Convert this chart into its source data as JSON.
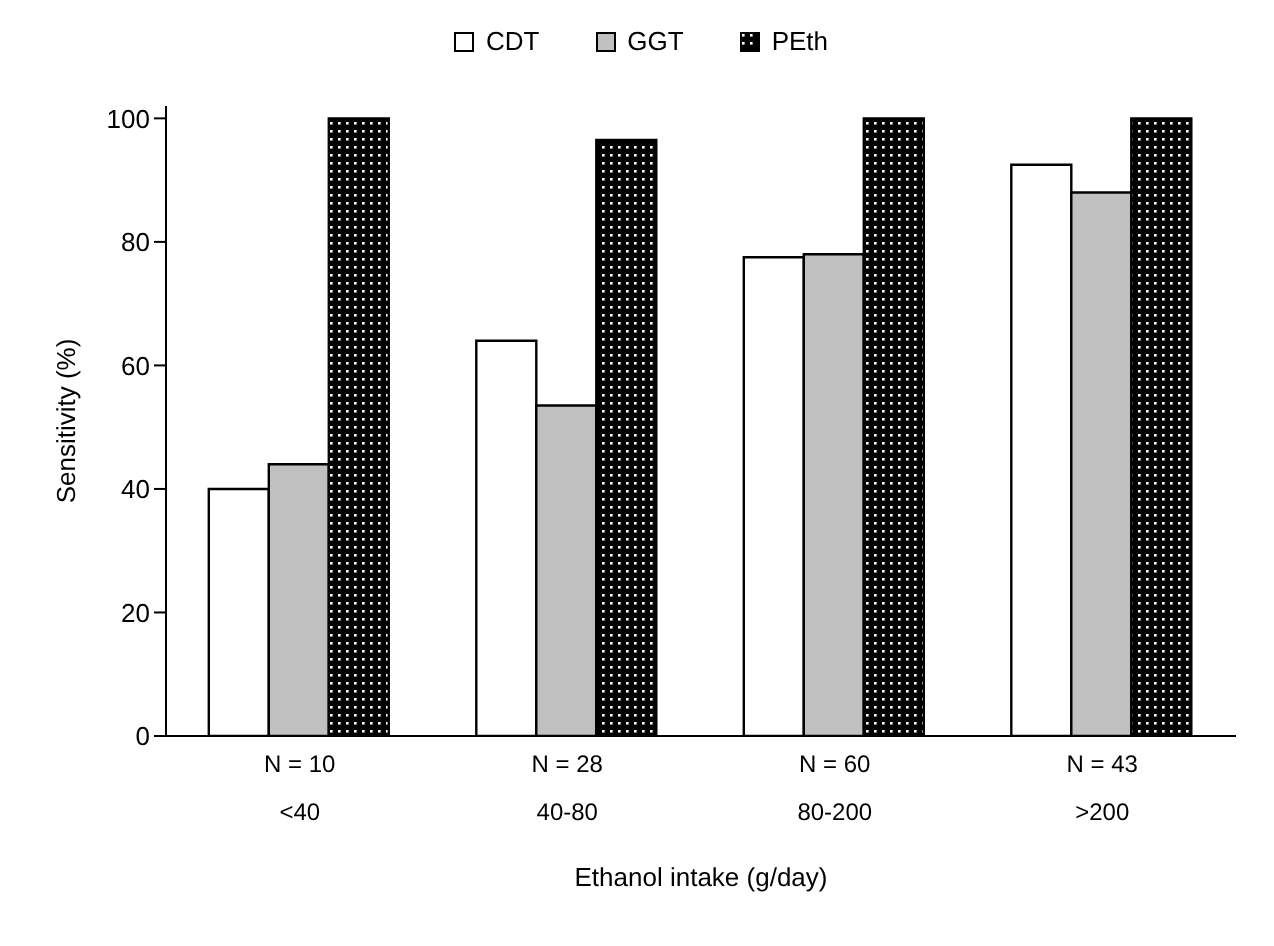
{
  "chart_data": {
    "type": "bar",
    "xlabel": "Ethanol intake (g/day)",
    "ylabel": "Sensitivity (%)",
    "categories": [
      "N = 10\n<40",
      "N = 28\n40-80",
      "N = 60\n80-200",
      "N = 43\n>200"
    ],
    "series": [
      {
        "name": "CDT",
        "color": "#ffffff",
        "values": [
          40,
          64,
          77.5,
          92.5
        ]
      },
      {
        "name": "GGT",
        "color": "#c0c0c0",
        "values": [
          44,
          53.5,
          78,
          88
        ]
      },
      {
        "name": "PEth",
        "color": "#000000",
        "values": [
          100,
          96.5,
          100,
          100
        ]
      }
    ],
    "ylim": [
      0,
      102
    ],
    "yticks": [
      0,
      20,
      40,
      60,
      80,
      100
    ],
    "legend": "top"
  }
}
